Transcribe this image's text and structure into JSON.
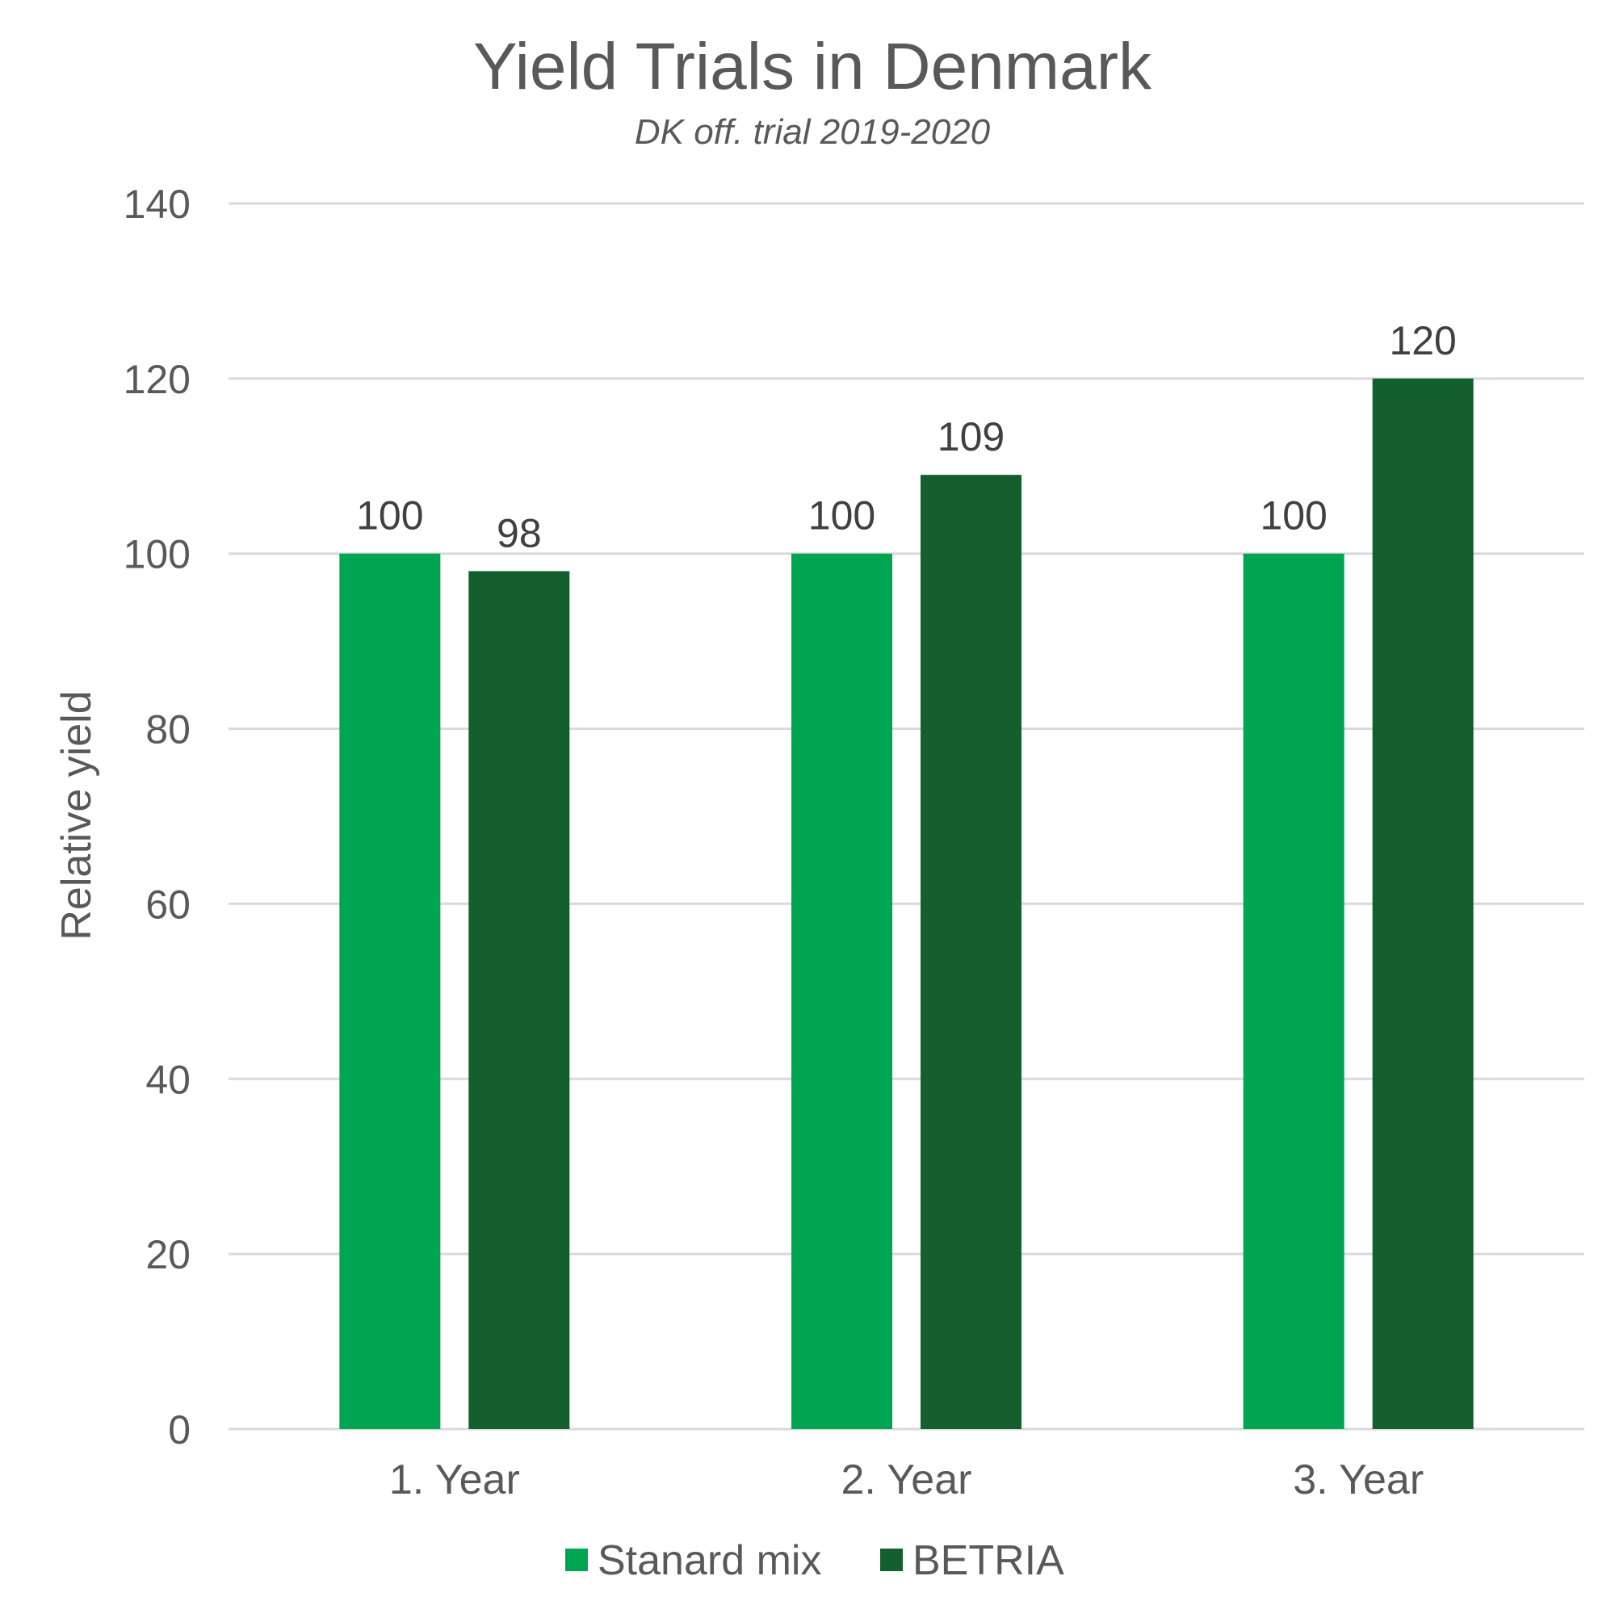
{
  "chart_data": {
    "type": "bar",
    "title": "Yield Trials in Denmark",
    "subtitle": "DK off. trial 2019-2020",
    "xlabel": "",
    "ylabel": "Relative yield",
    "categories": [
      "1. Year",
      "2. Year",
      "3. Year"
    ],
    "series": [
      {
        "name": "Stanard mix",
        "values": [
          100,
          100,
          100
        ],
        "color": "#00a551"
      },
      {
        "name": "BETRIA",
        "values": [
          98,
          109,
          120
        ],
        "color": "#135f2d"
      }
    ],
    "ylim": [
      0,
      140
    ],
    "yticks": [
      0,
      20,
      40,
      60,
      80,
      100,
      120,
      140
    ],
    "grid": true,
    "legend_position": "bottom",
    "data_labels": true
  }
}
